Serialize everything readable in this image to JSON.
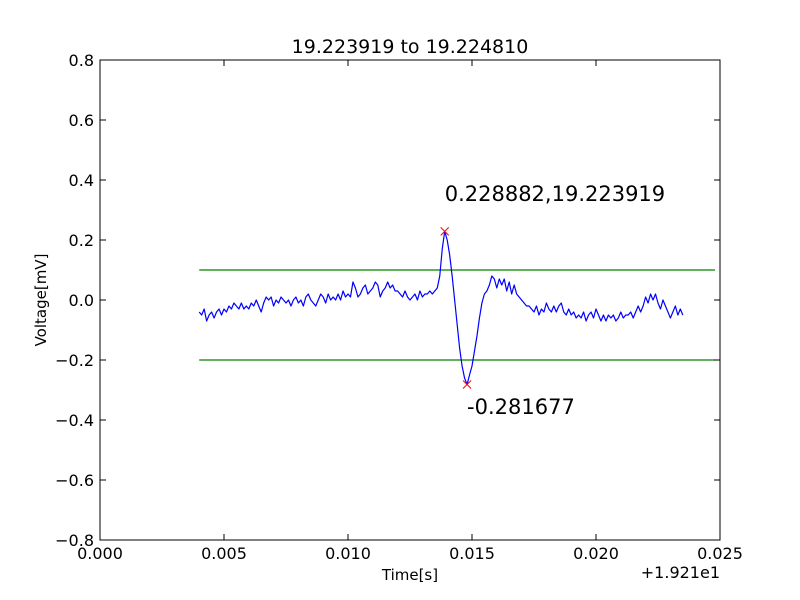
{
  "chart_data": {
    "type": "line",
    "title": "19.223919 to 19.224810",
    "xlabel": "Time[s]",
    "ylabel": "Voltage[mV]",
    "x_offset_label": "+1.921e1",
    "xlim": [
      0.0,
      0.025
    ],
    "ylim": [
      -0.8,
      0.8
    ],
    "x_ticks": [
      0.0,
      0.005,
      0.01,
      0.015,
      0.02,
      0.025
    ],
    "x_tick_labels": [
      "0.000",
      "0.005",
      "0.010",
      "0.015",
      "0.020",
      "0.025"
    ],
    "y_ticks": [
      0.8,
      0.6,
      0.4,
      0.2,
      0.0,
      -0.2,
      -0.4,
      -0.6,
      -0.8
    ],
    "y_tick_labels": [
      "0.8",
      "0.6",
      "0.4",
      "0.2",
      "0.0",
      "−0.2",
      "−0.4",
      "−0.6",
      "−0.8"
    ],
    "series": [
      {
        "color": "#0000ff",
        "points": [
          [
            0.004,
            -0.04
          ],
          [
            0.0041,
            -0.05
          ],
          [
            0.0042,
            -0.03
          ],
          [
            0.0043,
            -0.07
          ],
          [
            0.0044,
            -0.05
          ],
          [
            0.0045,
            -0.04
          ],
          [
            0.0046,
            -0.06
          ],
          [
            0.0047,
            -0.04
          ],
          [
            0.0048,
            -0.03
          ],
          [
            0.0049,
            -0.05
          ],
          [
            0.005,
            -0.03
          ],
          [
            0.0051,
            -0.04
          ],
          [
            0.0052,
            -0.02
          ],
          [
            0.0053,
            -0.03
          ],
          [
            0.0054,
            -0.01
          ],
          [
            0.0055,
            -0.02
          ],
          [
            0.0056,
            -0.03
          ],
          [
            0.0057,
            -0.01
          ],
          [
            0.0058,
            -0.03
          ],
          [
            0.0059,
            -0.02
          ],
          [
            0.006,
            -0.03
          ],
          [
            0.0061,
            -0.01
          ],
          [
            0.0062,
            -0.02
          ],
          [
            0.0063,
            0.0
          ],
          [
            0.0064,
            -0.02
          ],
          [
            0.0065,
            -0.04
          ],
          [
            0.0066,
            -0.01
          ],
          [
            0.0067,
            0.01
          ],
          [
            0.0068,
            0.0
          ],
          [
            0.0069,
            0.01
          ],
          [
            0.007,
            -0.02
          ],
          [
            0.0071,
            0.0
          ],
          [
            0.0072,
            -0.01
          ],
          [
            0.0073,
            0.01
          ],
          [
            0.0074,
            0.0
          ],
          [
            0.0075,
            -0.01
          ],
          [
            0.0076,
            0.0
          ],
          [
            0.0077,
            -0.02
          ],
          [
            0.0078,
            0.0
          ],
          [
            0.0079,
            0.01
          ],
          [
            0.008,
            -0.01
          ],
          [
            0.0081,
            0.0
          ],
          [
            0.0082,
            -0.02
          ],
          [
            0.0083,
            0.01
          ],
          [
            0.0084,
            0.02
          ],
          [
            0.0085,
            0.0
          ],
          [
            0.0086,
            -0.01
          ],
          [
            0.0087,
            -0.02
          ],
          [
            0.0088,
            0.0
          ],
          [
            0.0089,
            0.02
          ],
          [
            0.009,
            0.01
          ],
          [
            0.0091,
            -0.01
          ],
          [
            0.0092,
            0.02
          ],
          [
            0.0093,
            0.0
          ],
          [
            0.0094,
            0.01
          ],
          [
            0.0095,
            0.0
          ],
          [
            0.0096,
            0.02
          ],
          [
            0.0097,
            0.0
          ],
          [
            0.0098,
            0.03
          ],
          [
            0.0099,
            0.01
          ],
          [
            0.01,
            0.02
          ],
          [
            0.0101,
            0.01
          ],
          [
            0.0102,
            0.06
          ],
          [
            0.0103,
            0.04
          ],
          [
            0.0104,
            0.01
          ],
          [
            0.0105,
            0.02
          ],
          [
            0.0106,
            0.04
          ],
          [
            0.0107,
            0.05
          ],
          [
            0.0108,
            0.02
          ],
          [
            0.0109,
            0.03
          ],
          [
            0.011,
            0.04
          ],
          [
            0.0111,
            0.06
          ],
          [
            0.0112,
            0.05
          ],
          [
            0.0113,
            0.01
          ],
          [
            0.0114,
            0.03
          ],
          [
            0.0115,
            0.04
          ],
          [
            0.0116,
            0.06
          ],
          [
            0.0117,
            0.04
          ],
          [
            0.0118,
            0.05
          ],
          [
            0.0119,
            0.03
          ],
          [
            0.012,
            0.03
          ],
          [
            0.0121,
            0.02
          ],
          [
            0.0122,
            0.01
          ],
          [
            0.0123,
            0.03
          ],
          [
            0.0124,
            0.01
          ],
          [
            0.0125,
            0.0
          ],
          [
            0.0126,
            0.01
          ],
          [
            0.0127,
            0.02
          ],
          [
            0.0128,
            0.0
          ],
          [
            0.0129,
            0.03
          ],
          [
            0.013,
            0.01
          ],
          [
            0.0131,
            0.02
          ],
          [
            0.0132,
            0.02
          ],
          [
            0.0133,
            0.03
          ],
          [
            0.0134,
            0.02
          ],
          [
            0.0135,
            0.03
          ],
          [
            0.0136,
            0.04
          ],
          [
            0.0137,
            0.08
          ],
          [
            0.0138,
            0.17
          ],
          [
            0.0139,
            0.228882
          ],
          [
            0.014,
            0.2
          ],
          [
            0.0141,
            0.15
          ],
          [
            0.0142,
            0.08
          ],
          [
            0.0143,
            0.0
          ],
          [
            0.0144,
            -0.08
          ],
          [
            0.0145,
            -0.16
          ],
          [
            0.0146,
            -0.22
          ],
          [
            0.0147,
            -0.26
          ],
          [
            0.0148,
            -0.281677
          ],
          [
            0.0149,
            -0.25
          ],
          [
            0.015,
            -0.22
          ],
          [
            0.0151,
            -0.17
          ],
          [
            0.0152,
            -0.12
          ],
          [
            0.0153,
            -0.06
          ],
          [
            0.0154,
            -0.01
          ],
          [
            0.0155,
            0.02
          ],
          [
            0.0156,
            0.03
          ],
          [
            0.0157,
            0.05
          ],
          [
            0.0158,
            0.08
          ],
          [
            0.0159,
            0.07
          ],
          [
            0.016,
            0.04
          ],
          [
            0.0161,
            0.07
          ],
          [
            0.0162,
            0.05
          ],
          [
            0.0163,
            0.07
          ],
          [
            0.0164,
            0.03
          ],
          [
            0.0165,
            0.06
          ],
          [
            0.0166,
            0.02
          ],
          [
            0.0167,
            0.05
          ],
          [
            0.0168,
            0.02
          ],
          [
            0.0169,
            0.01
          ],
          [
            0.017,
            0.0
          ],
          [
            0.0171,
            -0.01
          ],
          [
            0.0172,
            -0.02
          ],
          [
            0.0173,
            -0.02
          ],
          [
            0.0174,
            -0.03
          ],
          [
            0.0175,
            -0.04
          ],
          [
            0.0176,
            -0.02
          ],
          [
            0.0177,
            -0.05
          ],
          [
            0.0178,
            -0.03
          ],
          [
            0.0179,
            -0.04
          ],
          [
            0.018,
            -0.01
          ],
          [
            0.0181,
            -0.03
          ],
          [
            0.0182,
            -0.04
          ],
          [
            0.0183,
            -0.02
          ],
          [
            0.0184,
            -0.04
          ],
          [
            0.0185,
            -0.02
          ],
          [
            0.0186,
            -0.01
          ],
          [
            0.0187,
            -0.04
          ],
          [
            0.0188,
            -0.05
          ],
          [
            0.0189,
            -0.03
          ],
          [
            0.019,
            -0.05
          ],
          [
            0.0191,
            -0.04
          ],
          [
            0.0192,
            -0.06
          ],
          [
            0.0193,
            -0.05
          ],
          [
            0.0194,
            -0.06
          ],
          [
            0.0195,
            -0.04
          ],
          [
            0.0196,
            -0.07
          ],
          [
            0.0197,
            -0.05
          ],
          [
            0.0198,
            -0.04
          ],
          [
            0.0199,
            -0.06
          ],
          [
            0.02,
            -0.03
          ],
          [
            0.0201,
            -0.05
          ],
          [
            0.0202,
            -0.07
          ],
          [
            0.0203,
            -0.05
          ],
          [
            0.0204,
            -0.07
          ],
          [
            0.0205,
            -0.05
          ],
          [
            0.0206,
            -0.06
          ],
          [
            0.0207,
            -0.05
          ],
          [
            0.0208,
            -0.07
          ],
          [
            0.0209,
            -0.06
          ],
          [
            0.021,
            -0.04
          ],
          [
            0.0211,
            -0.06
          ],
          [
            0.0212,
            -0.05
          ],
          [
            0.0213,
            -0.05
          ],
          [
            0.0214,
            -0.04
          ],
          [
            0.0215,
            -0.06
          ],
          [
            0.0216,
            -0.04
          ],
          [
            0.0217,
            -0.02
          ],
          [
            0.0218,
            -0.04
          ],
          [
            0.0219,
            -0.02
          ],
          [
            0.022,
            0.01
          ],
          [
            0.0221,
            -0.01
          ],
          [
            0.0222,
            0.02
          ],
          [
            0.0223,
            0.0
          ],
          [
            0.0224,
            0.02
          ],
          [
            0.0225,
            -0.01
          ],
          [
            0.0226,
            -0.03
          ],
          [
            0.0227,
            0.0
          ],
          [
            0.0228,
            -0.02
          ],
          [
            0.0229,
            -0.04
          ],
          [
            0.023,
            -0.06
          ],
          [
            0.0231,
            -0.04
          ],
          [
            0.0232,
            -0.02
          ],
          [
            0.0233,
            -0.05
          ],
          [
            0.0234,
            -0.03
          ],
          [
            0.0235,
            -0.05
          ]
        ]
      }
    ],
    "threshold_lines": [
      {
        "color": "#008000",
        "x_range": [
          0.004,
          0.0248
        ],
        "y": 0.1
      },
      {
        "color": "#008000",
        "x_range": [
          0.004,
          0.0248
        ],
        "y": -0.2
      }
    ],
    "markers": [
      {
        "x": 0.0139,
        "y": 0.228882,
        "color": "#ff0000",
        "label": "0.228882,19.223919",
        "label_x": 0.0139,
        "label_y": 0.33
      },
      {
        "x": 0.0148,
        "y": -0.281677,
        "color": "#ff0000",
        "label": "-0.281677",
        "label_x": 0.0148,
        "label_y": -0.38
      }
    ],
    "grid": false
  }
}
